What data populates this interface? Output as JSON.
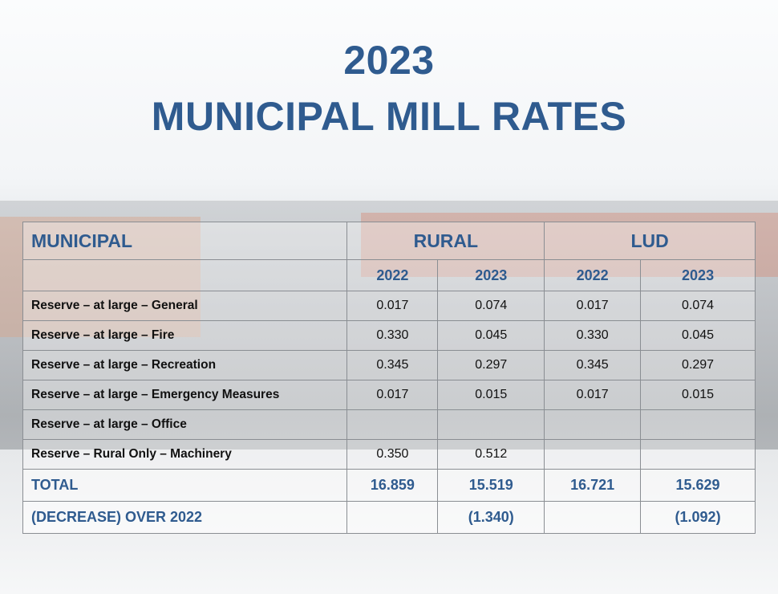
{
  "title": {
    "line1": "2023",
    "line2": "MUNICIPAL MILL RATES"
  },
  "colors": {
    "heading": "#2f5b8f",
    "text": "#111111"
  },
  "table": {
    "header": {
      "label": "MUNICIPAL",
      "groups": [
        "RURAL",
        "LUD"
      ]
    },
    "years": [
      "2022",
      "2023",
      "2022",
      "2023"
    ],
    "rows": [
      {
        "label": "Reserve – at large – General",
        "values": [
          "0.017",
          "0.074",
          "0.017",
          "0.074"
        ]
      },
      {
        "label": "Reserve – at large – Fire",
        "values": [
          "0.330",
          "0.045",
          "0.330",
          "0.045"
        ]
      },
      {
        "label": "Reserve – at large – Recreation",
        "values": [
          "0.345",
          "0.297",
          "0.345",
          "0.297"
        ]
      },
      {
        "label": "Reserve – at large – Emergency Measures",
        "values": [
          "0.017",
          "0.015",
          "0.017",
          "0.015"
        ]
      },
      {
        "label": "Reserve – at large – Office",
        "values": [
          "",
          "",
          "",
          ""
        ]
      },
      {
        "label": "Reserve – Rural Only – Machinery",
        "values": [
          "0.350",
          "0.512",
          "",
          ""
        ]
      }
    ],
    "total": {
      "label": "TOTAL",
      "values": [
        "16.859",
        "15.519",
        "16.721",
        "15.629"
      ]
    },
    "decrease": {
      "label": "(DECREASE) OVER 2022",
      "values": [
        "",
        "(1.340)",
        "",
        "(1.092)"
      ]
    }
  }
}
